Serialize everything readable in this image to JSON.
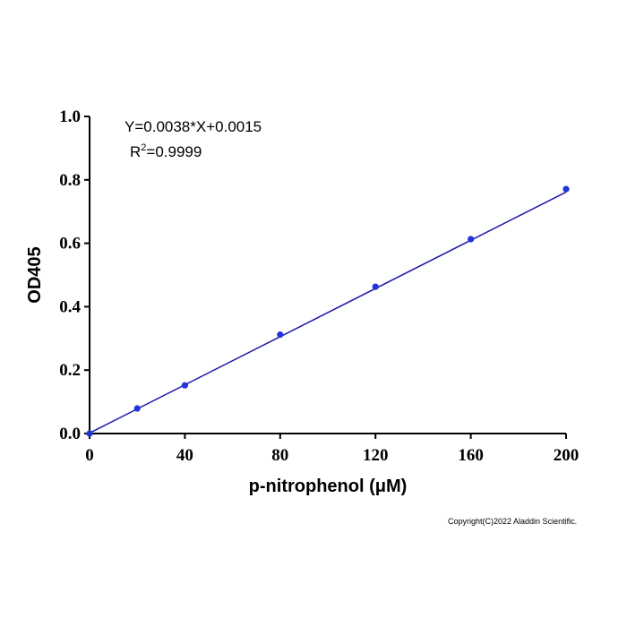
{
  "chart_data": {
    "type": "scatter",
    "title": "",
    "xlabel": "p-nitrophenol (μM)",
    "ylabel": "OD405",
    "xlim": [
      0,
      200
    ],
    "ylim": [
      0,
      1.0
    ],
    "x_ticks": [
      0,
      40,
      80,
      120,
      160,
      200
    ],
    "x_tick_labels": [
      "0",
      "40",
      "80",
      "120",
      "160",
      "200"
    ],
    "y_ticks": [
      0,
      0.2,
      0.4,
      0.6,
      0.8,
      1.0
    ],
    "y_tick_labels": [
      "0.0",
      "0.2",
      "0.4",
      "0.6",
      "0.8",
      "1.0"
    ],
    "grid": false,
    "series": [
      {
        "x": [
          0,
          20,
          40,
          80,
          120,
          160,
          200
        ],
        "y": [
          0.0,
          0.079,
          0.152,
          0.312,
          0.463,
          0.613,
          0.771
        ],
        "color": "#2233dd"
      }
    ],
    "fit_line": {
      "slope": 0.0038,
      "intercept": 0.0015,
      "color": "#1a1aaa"
    },
    "annotations": {
      "equation": "Y=0.0038*X+0.0015",
      "r2_prefix": "R",
      "r2_sup": "2",
      "r2_value": "=0.9999"
    }
  },
  "copyright": "Copyright(C)2022 Aladdin Scientific."
}
